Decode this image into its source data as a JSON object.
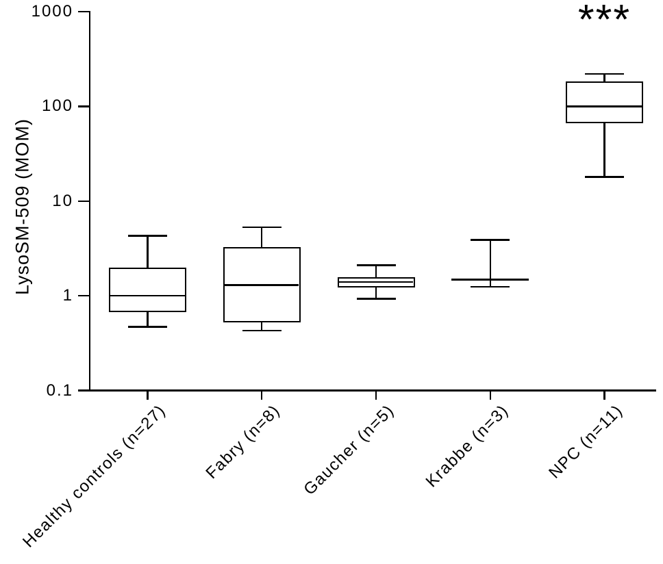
{
  "figure": {
    "background_color": "#ffffff",
    "line_color": "#000000"
  },
  "chart_data": {
    "type": "box",
    "title": "",
    "xlabel": "",
    "ylabel": "LysoSM-509 (MOM)",
    "y_scale": "log10",
    "ylim": [
      0.1,
      1000
    ],
    "grid": false,
    "legend_position": "none",
    "y_ticks": [
      {
        "value": 1000,
        "label": "1000"
      },
      {
        "value": 100,
        "label": "100"
      },
      {
        "value": 10,
        "label": "10"
      },
      {
        "value": 1,
        "label": "1"
      },
      {
        "value": 0.1,
        "label": "0.1"
      }
    ],
    "categories": [
      "Healthy controls (n=27)",
      "Fabry (n=8)",
      "Gaucher (n=5)",
      "Krabbe (n=3)",
      "NPC (n=11)"
    ],
    "series": [
      {
        "name": "Healthy controls (n=27)",
        "min": 0.47,
        "q1": 0.69,
        "median": 1.0,
        "q3": 1.93,
        "max": 4.3
      },
      {
        "name": "Fabry (n=8)",
        "min": 0.43,
        "q1": 0.53,
        "median": 1.3,
        "q3": 3.2,
        "max": 5.3
      },
      {
        "name": "Gaucher (n=5)",
        "min": 0.93,
        "q1": 1.25,
        "median": 1.4,
        "q3": 1.55,
        "max": 2.1
      },
      {
        "name": "Krabbe (n=3)",
        "min": 1.25,
        "q1": 1.47,
        "median": 1.47,
        "q3": 1.47,
        "max": 3.9
      },
      {
        "name": "NPC (n=11)",
        "min": 18,
        "q1": 68,
        "median": 100,
        "q3": 180,
        "max": 220
      }
    ],
    "annotations": [
      {
        "text": "***",
        "category": "NPC (n=11)",
        "category_index": 4,
        "position": "above"
      }
    ]
  }
}
